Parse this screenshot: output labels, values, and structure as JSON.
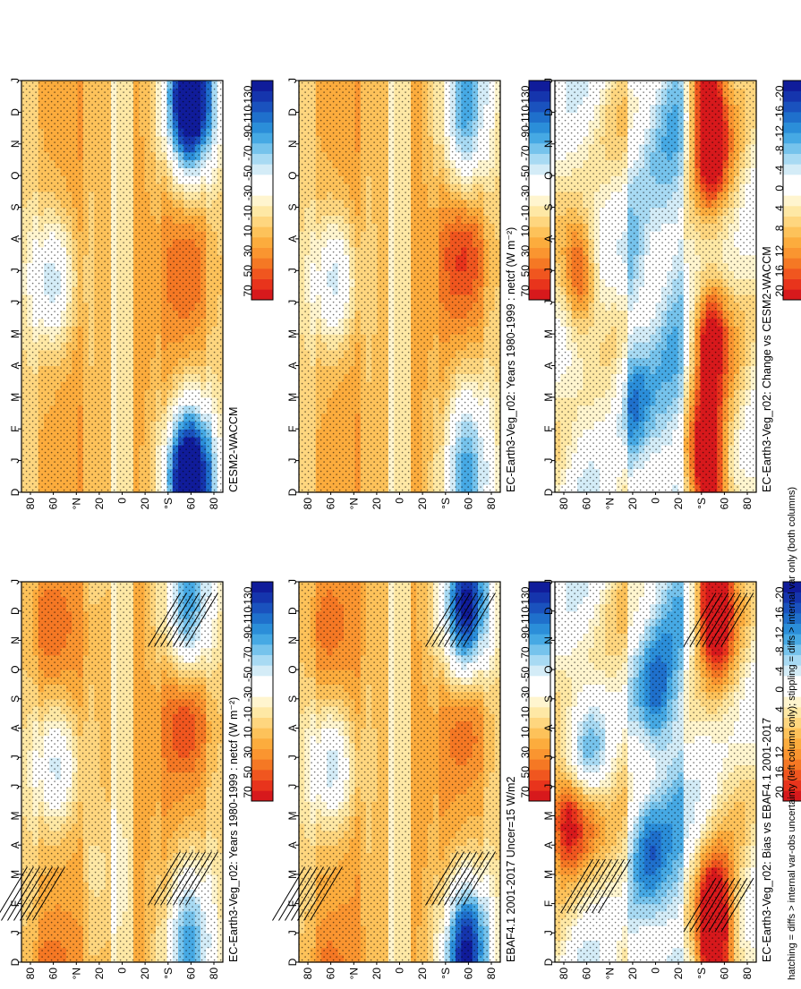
{
  "footer": "hatching = diffs > internal var-obs uncertainty (left column only); stippling = diffs > internal var only (both columns)",
  "chart_data": [
    {
      "type": "heatmap",
      "title": "EC-Earth3-Veg_r02: Years 1980-1999 : netcf (W m⁻²)",
      "x": [
        "D",
        "J",
        "F",
        "M",
        "A",
        "M",
        "J",
        "J",
        "A",
        "S",
        "O",
        "N",
        "D",
        "J"
      ],
      "y_ticks": [
        "80",
        "60",
        "°N",
        "20",
        "0",
        "20",
        "°S",
        "60",
        "80"
      ],
      "colorbar": {
        "labels": [
          "70",
          "50",
          "30",
          "10",
          "-10",
          "-30",
          "-50",
          "-70",
          "-90",
          "-110",
          "-130"
        ]
      },
      "features": [
        {
          "x": 6.7,
          "y": 58,
          "value": -70
        },
        {
          "x": 11.3,
          "y": -58,
          "value": -75
        },
        {
          "x": 1.7,
          "y": -60,
          "value": -70
        },
        {
          "x": 8.5,
          "y": -58,
          "value": 45
        },
        {
          "x": 11.5,
          "y": 65,
          "value": 28
        },
        {
          "x": 3,
          "y": 18,
          "value": -15
        }
      ],
      "hatching": true
    },
    {
      "type": "heatmap",
      "title": "EBAF4.1 2001-2017 Uncer=15 W/m2",
      "x": [
        "D",
        "J",
        "F",
        "M",
        "A",
        "M",
        "J",
        "J",
        "A",
        "S",
        "O",
        "N",
        "D",
        "J"
      ],
      "y_ticks": [
        "80",
        "60",
        "°N",
        "20",
        "0",
        "20",
        "°S",
        "60",
        "80"
      ],
      "colorbar": {
        "labels": [
          "70",
          "50",
          "30",
          "10",
          "-10",
          "-30",
          "-50",
          "-70",
          "-90",
          "-110",
          "-130"
        ]
      },
      "features": [
        {
          "x": 6.7,
          "y": 60,
          "value": -72
        },
        {
          "x": 11.3,
          "y": -58,
          "value": -95
        },
        {
          "x": 1.2,
          "y": -60,
          "value": -100
        },
        {
          "x": 8.3,
          "y": -60,
          "value": 30
        },
        {
          "x": 11.5,
          "y": 65,
          "value": 25
        }
      ],
      "hatching": true
    },
    {
      "type": "heatmap",
      "title": "EC-Earth3-Veg_r02: Bias vs EBAF4.1 2001-2017",
      "x": [
        "D",
        "J",
        "F",
        "M",
        "A",
        "M",
        "J",
        "J",
        "A",
        "S",
        "O",
        "N",
        "D",
        "J"
      ],
      "y_ticks": [
        "80",
        "60",
        "°N",
        "20",
        "0",
        "20",
        "°S",
        "60",
        "80"
      ],
      "colorbar": {
        "labels": [
          "20",
          "16",
          "12",
          "8",
          "4",
          "0",
          "-4",
          "-8",
          "-12",
          "-16",
          "-20"
        ]
      },
      "features": [
        {
          "x": 4.8,
          "y": 80,
          "value": 22
        },
        {
          "x": 5.3,
          "y": 60,
          "value": 14
        },
        {
          "x": 1.8,
          "y": -52,
          "value": 20
        },
        {
          "x": 11.8,
          "y": -52,
          "value": 20
        },
        {
          "x": 9,
          "y": 0,
          "value": -10
        },
        {
          "x": 4,
          "y": 8,
          "value": -10
        },
        {
          "x": 6.8,
          "y": 60,
          "value": -10
        }
      ],
      "hatching": true
    },
    {
      "type": "heatmap",
      "title": "CESM2-WACCM",
      "x": [
        "D",
        "J",
        "F",
        "M",
        "A",
        "M",
        "J",
        "J",
        "A",
        "S",
        "O",
        "N",
        "D",
        "J"
      ],
      "y_ticks": [
        "80",
        "60",
        "°N",
        "20",
        "0",
        "20",
        "°S",
        "60",
        "80"
      ],
      "colorbar": {
        "labels": [
          "70",
          "50",
          "30",
          "10",
          "-10",
          "-30",
          "-50",
          "-70",
          "-90",
          "-110",
          "-130"
        ]
      },
      "features": [
        {
          "x": 6.7,
          "y": 62,
          "value": -72
        },
        {
          "x": 11.8,
          "y": -60,
          "value": -110
        },
        {
          "x": 1,
          "y": -60,
          "value": -115
        },
        {
          "x": 7,
          "y": -60,
          "value": 28
        }
      ],
      "hatching": false
    },
    {
      "type": "heatmap",
      "title": "EC-Earth3-Veg_r02: Years 1980-1999 : netcf (W m⁻²)",
      "x": [
        "D",
        "J",
        "F",
        "M",
        "A",
        "M",
        "J",
        "J",
        "A",
        "S",
        "O",
        "N",
        "D",
        "J"
      ],
      "y_ticks": [
        "80",
        "60",
        "°N",
        "20",
        "0",
        "20",
        "°S",
        "60",
        "80"
      ],
      "colorbar": {
        "labels": [
          "70",
          "50",
          "30",
          "10",
          "-10",
          "-30",
          "-50",
          "-70",
          "-90",
          "-110",
          "-130"
        ]
      },
      "features": [
        {
          "x": 6.7,
          "y": 58,
          "value": -70
        },
        {
          "x": 11.3,
          "y": -58,
          "value": -75
        },
        {
          "x": 1.7,
          "y": -60,
          "value": -70
        },
        {
          "x": 7.5,
          "y": -58,
          "value": 42
        }
      ],
      "hatching": false
    },
    {
      "type": "heatmap",
      "title": "EC-Earth3-Veg_r02: Change vs CESM2-WACCM",
      "x": [
        "D",
        "J",
        "F",
        "M",
        "A",
        "M",
        "J",
        "J",
        "A",
        "S",
        "O",
        "N",
        "D",
        "J"
      ],
      "y_ticks": [
        "80",
        "60",
        "°N",
        "20",
        "0",
        "20",
        "°S",
        "60",
        "80"
      ],
      "colorbar": {
        "labels": [
          "20",
          "16",
          "12",
          "8",
          "4",
          "0",
          "-4",
          "-8",
          "-12",
          "-16",
          "-20"
        ]
      },
      "features": [
        {
          "x": 6.8,
          "y": 68,
          "value": 20
        },
        {
          "x": 5,
          "y": -48,
          "value": 22
        },
        {
          "x": 11,
          "y": -48,
          "value": 22
        },
        {
          "x": 1.5,
          "y": -45,
          "value": 20
        },
        {
          "x": 3,
          "y": 20,
          "value": -10
        },
        {
          "x": 7,
          "y": 22,
          "value": -8
        }
      ],
      "hatching": false
    }
  ]
}
